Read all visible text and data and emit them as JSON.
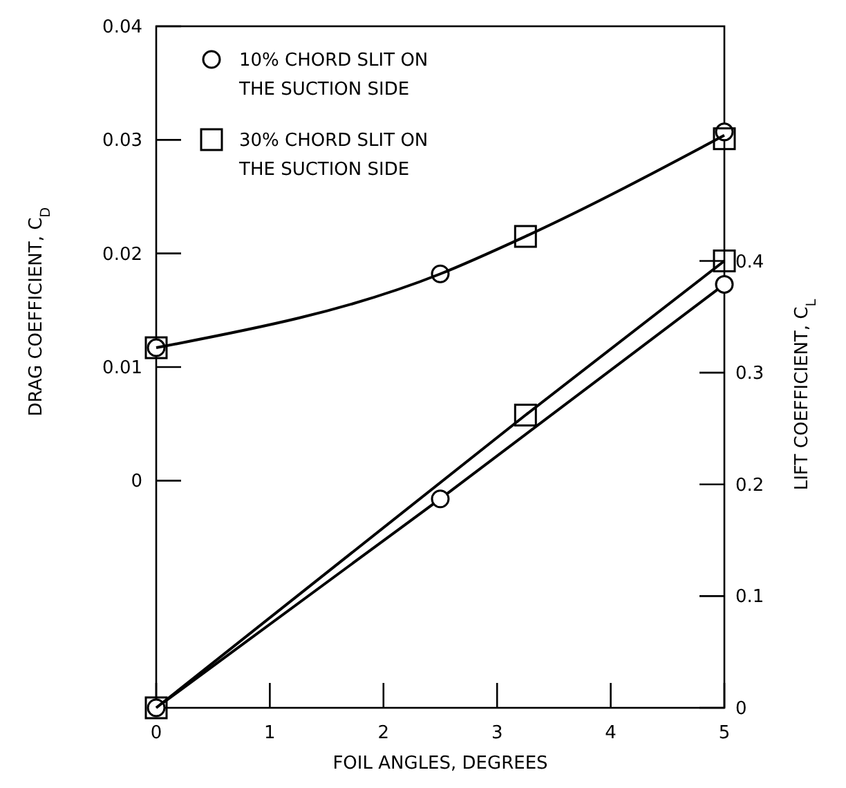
{
  "chart_data": {
    "type": "line",
    "xlabel": "FOIL ANGLES, DEGREES",
    "ylabel": "DRAG COEFFICIENT, C$_{D}$",
    "y2label": "LIFT COEFFICIENT, C$_{L}$",
    "xlim": [
      0,
      5
    ],
    "xticks": [
      0,
      1,
      2,
      3,
      4,
      5
    ],
    "ylim": [
      -0.02,
      0.04
    ],
    "yticks": [
      0,
      0.01,
      0.02,
      0.03,
      0.04
    ],
    "y2lim": [
      0,
      0.61
    ],
    "y2ticks": [
      0,
      0.1,
      0.2,
      0.3,
      0.4
    ],
    "grid": false,
    "legend": "top left",
    "series": [
      {
        "name": "10% CHORD SLIT ON\nTHE SUCTION SIDE",
        "type": "scatter",
        "marker": "circle",
        "color": "#000000",
        "x": [
          0,
          2.5,
          5
        ],
        "values": [
          0.0117,
          0.0182,
          0.0307
        ]
      },
      {
        "name": "30% CHORD SLIT ON\nTHE SUCTION SIDE",
        "type": "scatter",
        "marker": "square",
        "color": "#000000",
        "x": [
          0,
          3.25,
          5
        ],
        "values": [
          0.0117,
          0.0215,
          0.0301
        ]
      },
      {
        "marker": "none",
        "color": "#000000",
        "x": [
          0,
          2.5,
          3.25,
          5
        ],
        "values": [
          0.0117,
          0.0182,
          0.0215,
          0.0304
        ]
      },
      {
        "marker": "circle",
        "axis": "y2",
        "color": "#000000",
        "x": [
          0,
          2.5,
          5
        ],
        "values": [
          0,
          0.187,
          0.379
        ]
      },
      {
        "marker": "square",
        "axis": "y2",
        "color": "#000000",
        "x": [
          0,
          3.25,
          5
        ],
        "values": [
          0,
          0.262,
          0.4
        ]
      }
    ]
  }
}
